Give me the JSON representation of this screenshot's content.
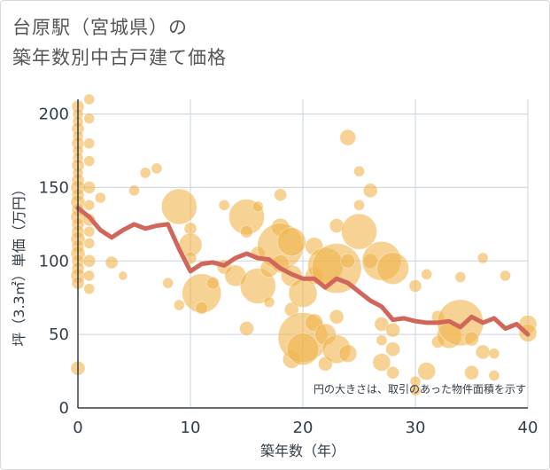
{
  "title": {
    "line1": "台原駅（宮城県）の",
    "line2": "築年数別中古戸建て価格"
  },
  "colors": {
    "bubble": "#f0b44c",
    "line": "#d0675a",
    "grid": "#c8d3dc",
    "axis": "#333d47"
  },
  "chart_data": {
    "type": "scatter",
    "xlabel": "築年数（年）",
    "ylabel": "坪（3.3㎡）単価（万円）",
    "xlim": [
      0,
      40
    ],
    "ylim": [
      0,
      210
    ],
    "xticks": [
      "0",
      "10",
      "20",
      "30",
      "40"
    ],
    "yticks": [
      "0",
      "50",
      "100",
      "150",
      "200"
    ],
    "note": "円の大きさは、取引のあった物件面積を示す",
    "grid": true,
    "trend_line": {
      "x": [
        0,
        1,
        2,
        3,
        4,
        5,
        6,
        7,
        8,
        9,
        10,
        11,
        12,
        13,
        14,
        15,
        16,
        17,
        18,
        19,
        20,
        21,
        22,
        23,
        24,
        25,
        26,
        27,
        28,
        29,
        30,
        31,
        32,
        33,
        34,
        35,
        36,
        37,
        38,
        39,
        40
      ],
      "y": [
        136,
        130,
        121,
        116,
        121,
        125,
        122,
        124,
        125,
        108,
        93,
        98,
        99,
        97,
        102,
        105,
        102,
        101,
        95,
        91,
        88,
        88,
        82,
        88,
        85,
        79,
        73,
        69,
        60,
        61,
        59,
        58,
        58,
        59,
        55,
        62,
        58,
        61,
        54,
        57,
        50
      ]
    },
    "points": [
      {
        "x": 0,
        "y": 205,
        "s": 7
      },
      {
        "x": 0,
        "y": 200,
        "s": 6
      },
      {
        "x": 0,
        "y": 195,
        "s": 6
      },
      {
        "x": 0,
        "y": 190,
        "s": 7
      },
      {
        "x": 0,
        "y": 185,
        "s": 6
      },
      {
        "x": 0,
        "y": 180,
        "s": 7
      },
      {
        "x": 0,
        "y": 175,
        "s": 6
      },
      {
        "x": 0,
        "y": 170,
        "s": 6
      },
      {
        "x": 0,
        "y": 165,
        "s": 7
      },
      {
        "x": 0,
        "y": 160,
        "s": 6
      },
      {
        "x": 0,
        "y": 155,
        "s": 7
      },
      {
        "x": 0,
        "y": 150,
        "s": 8
      },
      {
        "x": 0,
        "y": 145,
        "s": 7
      },
      {
        "x": 0,
        "y": 140,
        "s": 8
      },
      {
        "x": 0,
        "y": 135,
        "s": 7
      },
      {
        "x": 0,
        "y": 130,
        "s": 8
      },
      {
        "x": 0,
        "y": 125,
        "s": 7
      },
      {
        "x": 0,
        "y": 120,
        "s": 7
      },
      {
        "x": 0,
        "y": 115,
        "s": 8
      },
      {
        "x": 0,
        "y": 110,
        "s": 7
      },
      {
        "x": 0,
        "y": 105,
        "s": 8
      },
      {
        "x": 0,
        "y": 100,
        "s": 7
      },
      {
        "x": 0,
        "y": 95,
        "s": 7
      },
      {
        "x": 0,
        "y": 90,
        "s": 8
      },
      {
        "x": 0,
        "y": 85,
        "s": 7
      },
      {
        "x": 0,
        "y": 27,
        "s": 8
      },
      {
        "x": 1,
        "y": 210,
        "s": 6
      },
      {
        "x": 1,
        "y": 197,
        "s": 6
      },
      {
        "x": 1,
        "y": 180,
        "s": 6
      },
      {
        "x": 1,
        "y": 168,
        "s": 6
      },
      {
        "x": 1,
        "y": 150,
        "s": 7
      },
      {
        "x": 1,
        "y": 138,
        "s": 6
      },
      {
        "x": 1,
        "y": 128,
        "s": 7
      },
      {
        "x": 1,
        "y": 120,
        "s": 6
      },
      {
        "x": 1,
        "y": 112,
        "s": 6
      },
      {
        "x": 1,
        "y": 100,
        "s": 7
      },
      {
        "x": 1,
        "y": 90,
        "s": 6
      },
      {
        "x": 1,
        "y": 81,
        "s": 6
      },
      {
        "x": 2,
        "y": 143,
        "s": 6
      },
      {
        "x": 3,
        "y": 99,
        "s": 7
      },
      {
        "x": 4,
        "y": 90,
        "s": 5
      },
      {
        "x": 5,
        "y": 148,
        "s": 6
      },
      {
        "x": 6,
        "y": 160,
        "s": 6
      },
      {
        "x": 7,
        "y": 163,
        "s": 6
      },
      {
        "x": 8,
        "y": 85,
        "s": 6
      },
      {
        "x": 9,
        "y": 137,
        "s": 20
      },
      {
        "x": 9,
        "y": 70,
        "s": 6
      },
      {
        "x": 10,
        "y": 122,
        "s": 7
      },
      {
        "x": 10,
        "y": 111,
        "s": 13
      },
      {
        "x": 10,
        "y": 102,
        "s": 7
      },
      {
        "x": 11,
        "y": 78,
        "s": 22
      },
      {
        "x": 11,
        "y": 68,
        "s": 7
      },
      {
        "x": 12,
        "y": 85,
        "s": 7
      },
      {
        "x": 13,
        "y": 138,
        "s": 6
      },
      {
        "x": 13,
        "y": 96,
        "s": 8
      },
      {
        "x": 14,
        "y": 90,
        "s": 12
      },
      {
        "x": 15,
        "y": 130,
        "s": 20
      },
      {
        "x": 15,
        "y": 120,
        "s": 7
      },
      {
        "x": 15,
        "y": 54,
        "s": 8
      },
      {
        "x": 16,
        "y": 137,
        "s": 6
      },
      {
        "x": 16,
        "y": 105,
        "s": 8
      },
      {
        "x": 16,
        "y": 83,
        "s": 20
      },
      {
        "x": 17,
        "y": 72,
        "s": 6
      },
      {
        "x": 17,
        "y": 95,
        "s": 10
      },
      {
        "x": 18,
        "y": 145,
        "s": 7
      },
      {
        "x": 18,
        "y": 123,
        "s": 10
      },
      {
        "x": 18,
        "y": 110,
        "s": 26
      },
      {
        "x": 18,
        "y": 98,
        "s": 10
      },
      {
        "x": 19,
        "y": 113,
        "s": 16
      },
      {
        "x": 19,
        "y": 90,
        "s": 12
      },
      {
        "x": 19,
        "y": 33,
        "s": 10
      },
      {
        "x": 19,
        "y": 67,
        "s": 8
      },
      {
        "x": 20,
        "y": 48,
        "s": 28
      },
      {
        "x": 20,
        "y": 40,
        "s": 18
      },
      {
        "x": 20,
        "y": 78,
        "s": 16
      },
      {
        "x": 21,
        "y": 110,
        "s": 10
      },
      {
        "x": 21,
        "y": 58,
        "s": 10
      },
      {
        "x": 21,
        "y": 90,
        "s": 10
      },
      {
        "x": 22,
        "y": 97,
        "s": 20
      },
      {
        "x": 22,
        "y": 50,
        "s": 12
      },
      {
        "x": 22,
        "y": 30,
        "s": 8
      },
      {
        "x": 23,
        "y": 95,
        "s": 28
      },
      {
        "x": 23,
        "y": 124,
        "s": 8
      },
      {
        "x": 23,
        "y": 62,
        "s": 8
      },
      {
        "x": 23,
        "y": 40,
        "s": 16
      },
      {
        "x": 24,
        "y": 184,
        "s": 9
      },
      {
        "x": 24,
        "y": 100,
        "s": 8
      },
      {
        "x": 24,
        "y": 37,
        "s": 10
      },
      {
        "x": 25,
        "y": 161,
        "s": 6
      },
      {
        "x": 25,
        "y": 138,
        "s": 6
      },
      {
        "x": 25,
        "y": 120,
        "s": 20
      },
      {
        "x": 26,
        "y": 148,
        "s": 8
      },
      {
        "x": 26,
        "y": 100,
        "s": 8
      },
      {
        "x": 27,
        "y": 100,
        "s": 22
      },
      {
        "x": 27,
        "y": 57,
        "s": 8
      },
      {
        "x": 27,
        "y": 46,
        "s": 6
      },
      {
        "x": 27,
        "y": 31,
        "s": 10
      },
      {
        "x": 28,
        "y": 95,
        "s": 18
      },
      {
        "x": 28,
        "y": 53,
        "s": 8
      },
      {
        "x": 28,
        "y": 40,
        "s": 8
      },
      {
        "x": 28,
        "y": 24,
        "s": 7
      },
      {
        "x": 30,
        "y": 83,
        "s": 7
      },
      {
        "x": 30,
        "y": 12,
        "s": 6
      },
      {
        "x": 30,
        "y": 18,
        "s": 6
      },
      {
        "x": 31,
        "y": 91,
        "s": 6
      },
      {
        "x": 31,
        "y": 25,
        "s": 10
      },
      {
        "x": 32,
        "y": 62,
        "s": 7
      },
      {
        "x": 32,
        "y": 45,
        "s": 7
      },
      {
        "x": 33,
        "y": 49,
        "s": 14
      },
      {
        "x": 34,
        "y": 89,
        "s": 6
      },
      {
        "x": 34,
        "y": 58,
        "s": 26
      },
      {
        "x": 35,
        "y": 47,
        "s": 8
      },
      {
        "x": 35,
        "y": 24,
        "s": 8
      },
      {
        "x": 36,
        "y": 102,
        "s": 6
      },
      {
        "x": 36,
        "y": 38,
        "s": 8
      },
      {
        "x": 37,
        "y": 37,
        "s": 6
      },
      {
        "x": 37,
        "y": 22,
        "s": 6
      },
      {
        "x": 38,
        "y": 90,
        "s": 6
      },
      {
        "x": 40,
        "y": 57,
        "s": 10
      },
      {
        "x": 40,
        "y": 51,
        "s": 10
      }
    ]
  }
}
